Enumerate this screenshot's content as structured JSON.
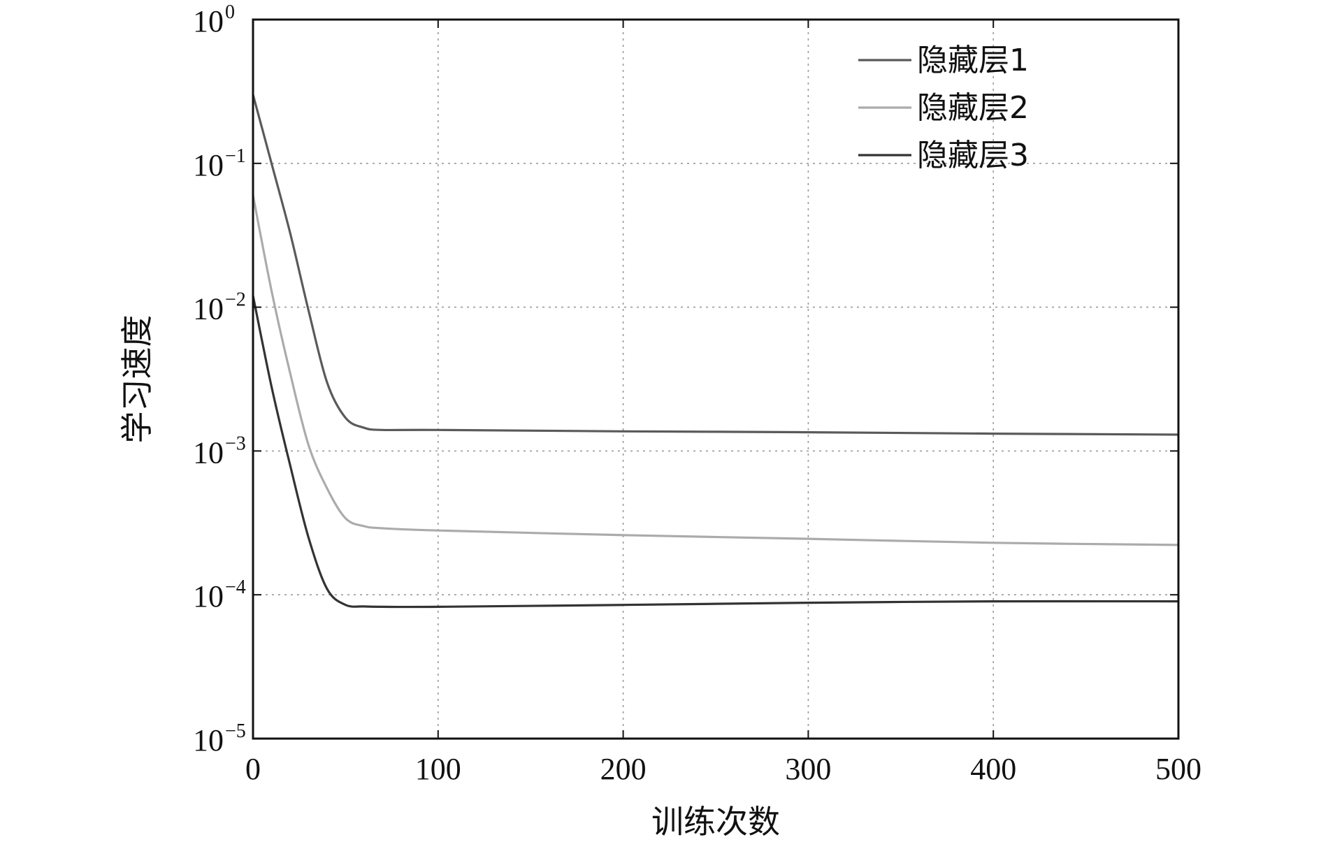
{
  "chart_data": {
    "type": "line",
    "xlabel": "训练次数",
    "ylabel": "学习速度",
    "xlim": [
      0,
      500
    ],
    "ylim": [
      1e-05,
      1
    ],
    "yscale": "log",
    "xticks": [
      0,
      100,
      200,
      300,
      400,
      500
    ],
    "xtick_labels": [
      "0",
      "100",
      "200",
      "300",
      "400",
      "500"
    ],
    "yticks": [
      1e-05,
      0.0001,
      0.001,
      0.01,
      0.1,
      1
    ],
    "ytick_labels": [
      {
        "base": "10",
        "exp": "−5"
      },
      {
        "base": "10",
        "exp": "−4"
      },
      {
        "base": "10",
        "exp": "−3"
      },
      {
        "base": "10",
        "exp": "−2"
      },
      {
        "base": "10",
        "exp": "−1"
      },
      {
        "base": "10",
        "exp": "0"
      }
    ],
    "grid": true,
    "legend_position": "top-right",
    "x": [
      0,
      10,
      20,
      30,
      40,
      50,
      60,
      70,
      100,
      200,
      300,
      400,
      500
    ],
    "series": [
      {
        "name": "隐藏层1",
        "color": "#5a5a5a",
        "values": [
          0.3,
          0.1,
          0.033,
          0.0095,
          0.003,
          0.0017,
          0.00145,
          0.0014,
          0.0014,
          0.00137,
          0.00135,
          0.00132,
          0.0013
        ]
      },
      {
        "name": "隐藏层2",
        "color": "#ababab",
        "values": [
          0.06,
          0.013,
          0.0035,
          0.0011,
          0.00055,
          0.00034,
          0.0003,
          0.00029,
          0.00028,
          0.00026,
          0.000245,
          0.00023,
          0.000222
        ]
      },
      {
        "name": "隐藏层3",
        "color": "#333333",
        "values": [
          0.012,
          0.0028,
          0.0008,
          0.00025,
          0.00011,
          8.5e-05,
          8.3e-05,
          8.25e-05,
          8.25e-05,
          8.5e-05,
          8.8e-05,
          9e-05,
          9e-05
        ]
      }
    ]
  }
}
